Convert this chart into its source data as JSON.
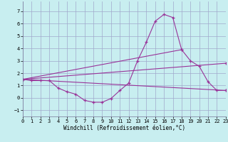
{
  "xlabel": "Windchill (Refroidissement éolien,°C)",
  "background_color": "#c8eef0",
  "grid_color": "#a0a8cc",
  "line_color": "#993399",
  "xlim": [
    0,
    23
  ],
  "ylim": [
    -1.5,
    7.8
  ],
  "yticks": [
    -1,
    0,
    1,
    2,
    3,
    4,
    5,
    6,
    7
  ],
  "xticks": [
    0,
    1,
    2,
    3,
    4,
    5,
    6,
    7,
    8,
    9,
    10,
    11,
    12,
    13,
    14,
    15,
    16,
    17,
    18,
    19,
    20,
    21,
    22,
    23
  ],
  "curve_x": [
    0,
    1,
    2,
    3,
    4,
    5,
    6,
    7,
    8,
    9,
    10,
    11,
    12,
    13,
    14,
    15,
    16,
    17,
    18,
    19,
    20,
    21,
    22,
    23
  ],
  "curve_y": [
    1.5,
    1.4,
    1.4,
    1.4,
    0.8,
    0.5,
    0.3,
    -0.2,
    -0.35,
    -0.35,
    -0.05,
    0.6,
    1.2,
    3.0,
    4.5,
    6.2,
    6.75,
    6.5,
    3.9,
    3.0,
    2.55,
    1.3,
    0.6,
    0.6
  ],
  "line1_x": [
    0,
    23
  ],
  "line1_y": [
    1.5,
    0.6
  ],
  "line2_x": [
    0,
    23
  ],
  "line2_y": [
    1.5,
    2.8
  ],
  "line3_x": [
    0,
    18
  ],
  "line3_y": [
    1.5,
    3.9
  ]
}
